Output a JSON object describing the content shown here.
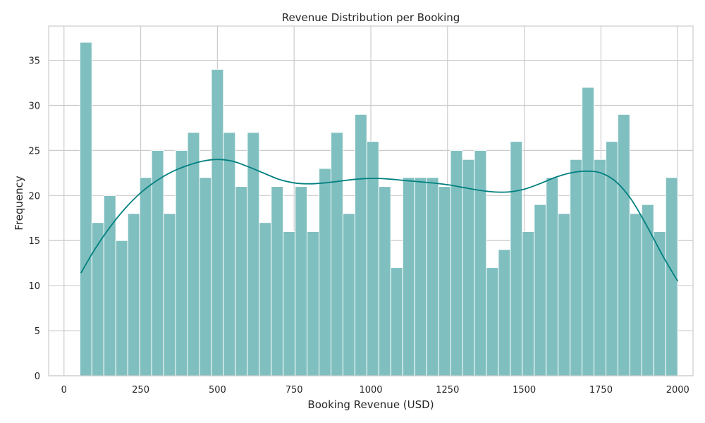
{
  "chart_data": {
    "type": "bar",
    "title": "Revenue Distribution per Booking",
    "xlabel": "Booking Revenue (USD)",
    "ylabel": "Frequency",
    "xlim": [
      -50,
      2050
    ],
    "ylim": [
      0,
      38.8
    ],
    "xticks": [
      0,
      250,
      500,
      750,
      1000,
      1250,
      1500,
      1750,
      2000
    ],
    "yticks": [
      0,
      5,
      10,
      15,
      20,
      25,
      30,
      35
    ],
    "grid": true,
    "bins": {
      "start": 52,
      "end": 2000,
      "counts": [
        37,
        17,
        20,
        15,
        18,
        22,
        25,
        18,
        25,
        27,
        22,
        34,
        27,
        21,
        27,
        17,
        21,
        16,
        21,
        16,
        23,
        27,
        18,
        29,
        26,
        21,
        12,
        22,
        22,
        22,
        21,
        25,
        24,
        25,
        12,
        14,
        26,
        16,
        19,
        22,
        18,
        24,
        32,
        24,
        26,
        29,
        18,
        19,
        16,
        22
      ]
    },
    "kde": {
      "x": [
        55,
        100,
        150,
        200,
        250,
        300,
        350,
        400,
        450,
        500,
        550,
        600,
        650,
        700,
        750,
        800,
        850,
        900,
        950,
        1000,
        1050,
        1100,
        1150,
        1200,
        1250,
        1300,
        1350,
        1400,
        1450,
        1500,
        1550,
        1600,
        1650,
        1700,
        1750,
        1800,
        1850,
        1900,
        1950,
        2000
      ],
      "y": [
        11.4,
        14.0,
        16.5,
        18.6,
        20.3,
        21.6,
        22.6,
        23.3,
        23.8,
        24.0,
        23.8,
        23.2,
        22.5,
        21.8,
        21.4,
        21.3,
        21.4,
        21.6,
        21.8,
        21.9,
        21.85,
        21.7,
        21.55,
        21.4,
        21.2,
        20.9,
        20.6,
        20.4,
        20.4,
        20.7,
        21.3,
        22.0,
        22.5,
        22.7,
        22.5,
        21.5,
        19.5,
        16.6,
        13.4,
        10.5
      ]
    },
    "colors": {
      "bar_fill": "#80bfbf",
      "kde_line": "#008080"
    }
  }
}
